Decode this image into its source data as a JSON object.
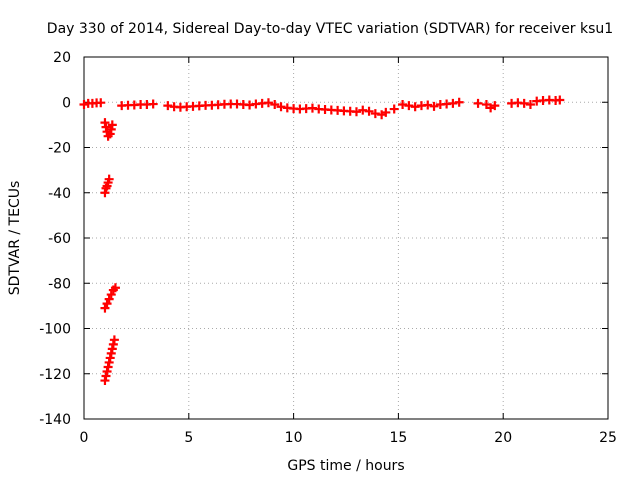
{
  "chart_data": {
    "type": "scatter",
    "title": "Day 330 of 2014, Sidereal Day-to-day VTEC variation (SDTVAR) for receiver ksu1",
    "xlabel": "GPS time / hours",
    "ylabel": "SDTVAR / TECUs",
    "xlim": [
      0,
      25
    ],
    "ylim": [
      -140,
      20
    ],
    "xticks": [
      0,
      5,
      10,
      15,
      20,
      25
    ],
    "yticks": [
      20,
      0,
      -20,
      -40,
      -60,
      -80,
      -100,
      -120,
      -140
    ],
    "grid": true,
    "marker": "+",
    "color": "#ff0000",
    "series": [
      {
        "points": [
          [
            0.0,
            -1.0
          ],
          [
            0.2,
            -0.5
          ],
          [
            0.4,
            -0.5
          ],
          [
            0.6,
            -0.3
          ],
          [
            0.8,
            -0.2
          ],
          [
            1.0,
            -9.0
          ],
          [
            1.05,
            -11.0
          ],
          [
            1.1,
            -13.0
          ],
          [
            1.15,
            -15.0
          ],
          [
            1.25,
            -14.0
          ],
          [
            1.3,
            -12.0
          ],
          [
            1.35,
            -10.0
          ],
          [
            1.0,
            -40.0
          ],
          [
            1.05,
            -38.0
          ],
          [
            1.1,
            -37.0
          ],
          [
            1.15,
            -35.5
          ],
          [
            1.2,
            -34.0
          ],
          [
            1.0,
            -91.0
          ],
          [
            1.1,
            -89.0
          ],
          [
            1.2,
            -87.0
          ],
          [
            1.3,
            -85.0
          ],
          [
            1.4,
            -83.0
          ],
          [
            1.5,
            -82.0
          ],
          [
            1.0,
            -123.0
          ],
          [
            1.05,
            -121.0
          ],
          [
            1.1,
            -119.0
          ],
          [
            1.15,
            -117.0
          ],
          [
            1.2,
            -115.0
          ],
          [
            1.25,
            -113.0
          ],
          [
            1.3,
            -111.0
          ],
          [
            1.35,
            -109.0
          ],
          [
            1.4,
            -107.0
          ],
          [
            1.45,
            -105.0
          ],
          [
            1.8,
            -1.5
          ],
          [
            2.1,
            -1.3
          ],
          [
            2.4,
            -1.2
          ],
          [
            2.7,
            -1.0
          ],
          [
            3.0,
            -1.0
          ],
          [
            3.3,
            -0.8
          ],
          [
            4.0,
            -1.5
          ],
          [
            4.3,
            -2.0
          ],
          [
            4.6,
            -2.2
          ],
          [
            4.9,
            -2.0
          ],
          [
            5.2,
            -1.8
          ],
          [
            5.5,
            -1.6
          ],
          [
            5.8,
            -1.4
          ],
          [
            6.1,
            -1.3
          ],
          [
            6.4,
            -1.1
          ],
          [
            6.7,
            -0.9
          ],
          [
            7.0,
            -0.8
          ],
          [
            7.3,
            -0.8
          ],
          [
            7.6,
            -1.0
          ],
          [
            7.9,
            -1.2
          ],
          [
            8.2,
            -0.8
          ],
          [
            8.5,
            -0.5
          ],
          [
            8.8,
            -0.2
          ],
          [
            9.1,
            -1.0
          ],
          [
            9.4,
            -2.0
          ],
          [
            9.7,
            -2.5
          ],
          [
            10.0,
            -2.8
          ],
          [
            10.3,
            -3.0
          ],
          [
            10.6,
            -2.8
          ],
          [
            10.9,
            -2.6
          ],
          [
            11.2,
            -3.0
          ],
          [
            11.5,
            -3.2
          ],
          [
            11.8,
            -3.4
          ],
          [
            12.1,
            -3.6
          ],
          [
            12.4,
            -3.8
          ],
          [
            12.7,
            -4.0
          ],
          [
            13.0,
            -4.2
          ],
          [
            13.3,
            -3.5
          ],
          [
            13.6,
            -4.0
          ],
          [
            13.9,
            -5.0
          ],
          [
            14.2,
            -5.5
          ],
          [
            14.4,
            -4.5
          ],
          [
            14.8,
            -3.0
          ],
          [
            15.2,
            -1.0
          ],
          [
            15.5,
            -1.5
          ],
          [
            15.8,
            -2.0
          ],
          [
            16.1,
            -1.5
          ],
          [
            16.4,
            -1.2
          ],
          [
            16.7,
            -1.8
          ],
          [
            17.0,
            -1.0
          ],
          [
            17.3,
            -0.8
          ],
          [
            17.6,
            -0.5
          ],
          [
            17.9,
            0.0
          ],
          [
            18.8,
            -0.5
          ],
          [
            19.2,
            -1.0
          ],
          [
            19.4,
            -2.5
          ],
          [
            19.6,
            -1.5
          ],
          [
            20.4,
            -0.5
          ],
          [
            20.7,
            -0.2
          ],
          [
            21.0,
            -0.5
          ],
          [
            21.3,
            -1.0
          ],
          [
            21.6,
            0.5
          ],
          [
            21.9,
            0.8
          ],
          [
            22.2,
            1.0
          ],
          [
            22.5,
            0.8
          ],
          [
            22.7,
            1.0
          ]
        ]
      }
    ]
  }
}
